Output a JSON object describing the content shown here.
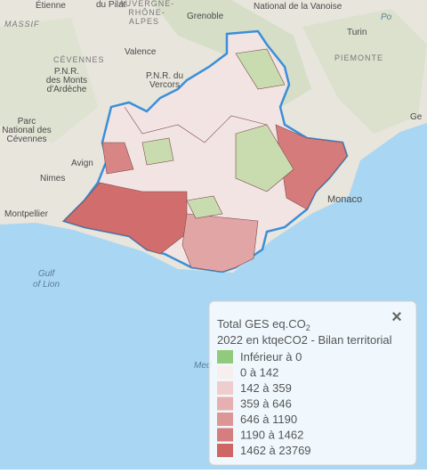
{
  "map": {
    "place_labels": [
      "Étienne",
      "du Pilat",
      "AUVERGNE-",
      "RHÔNE-",
      "ALPES",
      "Grenoble",
      "National de la Vanoise",
      "MASSIF",
      "Turin",
      "Po",
      "PIEMONTE",
      "CÉVENNES",
      "Valence",
      "P.N.R.",
      "des Monts",
      "d'Ardèche",
      "P.N.R. du",
      "Vercors",
      "Ge",
      "Parc",
      "National des",
      "Cévennes",
      "Avign",
      "Nimes",
      "Monaco",
      "Montpellier",
      "Gulf",
      "of Lion",
      "Med"
    ],
    "legend": {
      "title": "Total GES eq.CO",
      "title_sub": "2",
      "subtitle": "2022 en ktqeCO2 - Bilan territorial",
      "close": "×",
      "entries": [
        {
          "label": "Inférieur à 0",
          "color": "#8fcb7b"
        },
        {
          "label": "0 à 142",
          "color": "#f7eeee"
        },
        {
          "label": "142 à 359",
          "color": "#efcdcd"
        },
        {
          "label": "359 à 646",
          "color": "#e6b0b0"
        },
        {
          "label": "646 à 1190",
          "color": "#dd9595"
        },
        {
          "label": "1190 à 1462",
          "color": "#d67e7e"
        },
        {
          "label": "1462 à 23769",
          "color": "#cf6565"
        }
      ]
    }
  }
}
